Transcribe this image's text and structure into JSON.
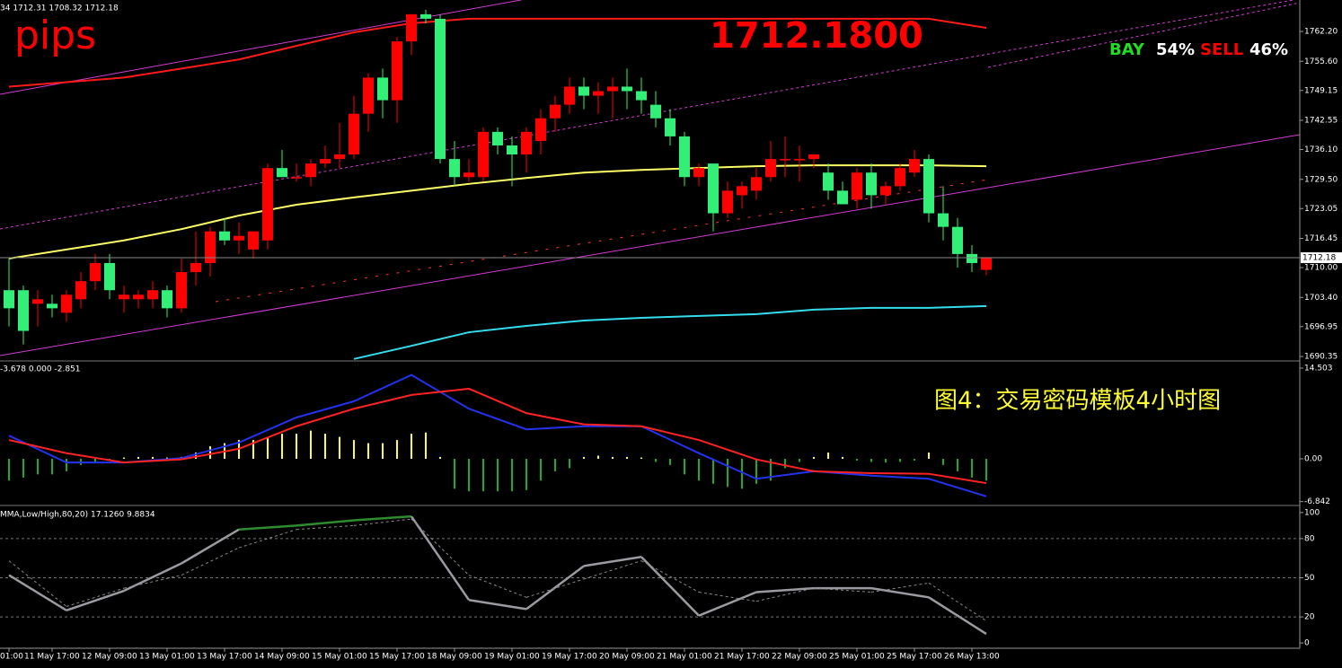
{
  "chart_data": [
    {
      "type": "candlestick",
      "header": "34 1712.31 1708.32 1712.18",
      "annotations": {
        "symbol": "pips",
        "price": "1712.1800",
        "buy_label": "BAY",
        "buy_pct": "54%",
        "sell_label": "SELL",
        "sell_pct": "46%",
        "caption": "图4：交易密码模板4小时图"
      },
      "up_color": "#ff0000",
      "down_color": "#33ee77",
      "categories": [
        "01:00",
        null,
        null,
        "11 May 17:00",
        null,
        null,
        null,
        "12 May 09:00",
        null,
        null,
        null,
        "13 May 01:00",
        null,
        null,
        null,
        "13 May 17:00",
        null,
        null,
        null,
        "14 May 09:00",
        null,
        null,
        null,
        "15 May 01:00",
        null,
        null,
        null,
        "15 May 17:00",
        null,
        null,
        null,
        "18 May 09:00",
        null,
        null,
        null,
        "19 May 01:00",
        null,
        null,
        null,
        "19 May 17:00",
        null,
        null,
        null,
        "20 May 09:00",
        null,
        null,
        null,
        "21 May 01:00",
        null,
        null,
        null,
        "21 May 17:00",
        null,
        null,
        null,
        "22 May 09:00",
        null,
        null,
        null,
        "25 May 01:00",
        null,
        null,
        null,
        "25 May 17:00",
        null,
        null,
        null,
        "26 May 13:00",
        null
      ],
      "open": [
        1705,
        1705,
        1702,
        1702,
        1700,
        1703,
        1707,
        1711,
        1703,
        1703,
        1703,
        1705,
        1701,
        1709,
        1711,
        1718,
        1716,
        1714,
        1716,
        1732,
        1730,
        1730,
        1733,
        1734,
        1735,
        1744,
        1752,
        1747,
        1760,
        1766,
        1765,
        1734,
        1730,
        1730,
        1740,
        1737,
        1735,
        1738,
        1743,
        1746,
        1750,
        1748,
        1749,
        1750,
        1749,
        1746,
        1743,
        1739,
        1730,
        1733,
        1722,
        1726,
        1727,
        1730,
        1734,
        1734,
        1734,
        1731,
        1727,
        1725,
        1731,
        1726,
        1728,
        1731,
        1734,
        1722,
        1719,
        1713,
        1709.5
      ],
      "high": [
        1712,
        1706,
        1705,
        1704,
        1705,
        1709,
        1713,
        1713,
        1706,
        1705,
        1707,
        1706,
        1712,
        1718,
        1719,
        1721,
        1720,
        1718,
        1733,
        1736,
        1733,
        1734,
        1737,
        1742,
        1748,
        1753,
        1754,
        1761,
        1766,
        1767,
        1766,
        1738,
        1734,
        1741,
        1741,
        1739,
        1741,
        1745,
        1748,
        1752,
        1752,
        1751,
        1752,
        1754,
        1752,
        1749,
        1745,
        1740,
        1733,
        1733,
        1729,
        1729,
        1732,
        1738,
        1739,
        1737,
        1735,
        1733,
        1729,
        1732,
        1733,
        1729,
        1733,
        1736,
        1735,
        1728,
        1721,
        1715,
        1712.31
      ],
      "low": [
        1697,
        1693,
        1697,
        1699,
        1698,
        1701,
        1705,
        1703,
        1700,
        1701,
        1701,
        1699,
        1700,
        1706,
        1708,
        1715,
        1713,
        1712,
        1714,
        1730,
        1729,
        1728,
        1732,
        1732,
        1734,
        1740,
        1743,
        1742,
        1757,
        1764,
        1733,
        1728,
        1729,
        1729,
        1735,
        1728,
        1731,
        1735,
        1740,
        1744,
        1745,
        1744,
        1743,
        1745,
        1744,
        1741,
        1737,
        1728,
        1728,
        1718,
        1721,
        1723,
        1725,
        1729,
        1730,
        1729,
        1732,
        1725,
        1724,
        1723,
        1723,
        1724,
        1727,
        1730,
        1720,
        1716,
        1710,
        1709,
        1708.32
      ],
      "close": [
        1701,
        1696,
        1703,
        1701,
        1704,
        1707,
        1711,
        1705,
        1704,
        1704,
        1705,
        1701,
        1709,
        1711,
        1718,
        1716,
        1717,
        1718,
        1732,
        1730,
        1730,
        1733,
        1734,
        1735,
        1744,
        1752,
        1747,
        1760,
        1766,
        1765,
        1734,
        1730,
        1731,
        1740,
        1737,
        1735,
        1740,
        1743,
        1746,
        1750,
        1748,
        1749,
        1750,
        1749,
        1747,
        1743,
        1739,
        1730,
        1732,
        1722,
        1727,
        1728,
        1730,
        1734,
        1734,
        1734,
        1735,
        1727,
        1724,
        1731,
        1726,
        1728,
        1732,
        1734,
        1722,
        1719,
        1713,
        1711,
        1712.18
      ],
      "ylim": [
        1689.56,
        1769.15
      ],
      "yticks": [
        {
          "value": 1762.2,
          "label": "1762.20"
        },
        {
          "value": 1755.6,
          "label": "1755.60"
        },
        1749.15,
        1742.55,
        {
          "value": 1736.1,
          "label": "1736.10"
        },
        {
          "value": 1729.5,
          "label": "1729.50"
        },
        1723.05,
        1716.45,
        {
          "value": 1710,
          "label": "1710.00"
        },
        {
          "value": 1703.4,
          "label": "1703.40"
        },
        1696.95,
        1690.35
      ],
      "line_x": [
        0,
        4,
        8,
        12,
        16,
        20,
        24,
        28,
        32,
        36,
        40,
        44,
        48,
        52,
        56,
        60,
        64,
        68
      ],
      "lines": [
        {
          "color": "#ff1a1a",
          "values": [
            1750,
            1751,
            1752,
            1754,
            1756,
            1759,
            1762,
            1764,
            1765,
            1765,
            1765,
            1765,
            1765,
            1765,
            1765,
            1765,
            1765,
            1763
          ]
        },
        {
          "color": "#ffff66",
          "values": [
            1712,
            1714,
            1716,
            1718.5,
            1721.5,
            1723.9,
            1725.5,
            1727,
            1728.5,
            1729.8,
            1731,
            1731.6,
            1732,
            1732.4,
            1732.6,
            1732.6,
            1732.6,
            1732.4
          ]
        },
        {
          "color": "#33ddee",
          "values": [
            null,
            null,
            null,
            null,
            null,
            null,
            1689.8,
            1692.7,
            1695.7,
            1697.1,
            1698.3,
            1698.9,
            1699.3,
            1699.7,
            1700.7,
            1701.1,
            1701.1,
            1701.5
          ]
        }
      ]
    },
    {
      "type": "macd",
      "header": "-3.678 0.000 -2.851",
      "pos_color": "#ffff33",
      "neg_color": "#22aa22",
      "values": [
        -3.5,
        -3,
        -2.5,
        -2.5,
        -2,
        -1,
        -0.5,
        -0.3,
        0.2,
        0.3,
        0.3,
        0.2,
        0.3,
        1,
        2,
        2.5,
        3,
        3,
        3.5,
        4,
        4,
        4.5,
        4,
        3.5,
        3,
        2.5,
        2.5,
        3,
        4,
        4.2,
        0.3,
        -4.8,
        -5.2,
        -5.2,
        -5.2,
        -5.2,
        -5,
        -3.5,
        -2,
        -1.5,
        0.3,
        0.5,
        0.3,
        0.3,
        0.2,
        -0.5,
        -1,
        -2.5,
        -3.5,
        -4,
        -4.5,
        -4.8,
        -4,
        -3.5,
        -1.5,
        -0.5,
        0.3,
        1,
        0.3,
        -0.3,
        -0.5,
        -0.6,
        -0.5,
        -0.3,
        1,
        -1,
        -2,
        -3,
        -3.5
      ],
      "ylim": [
        -7.18,
        15.5
      ],
      "yticks": [
        14.503,
        {
          "value": 0,
          "label": "0.00"
        },
        -6.842
      ],
      "line_x": [
        0,
        4,
        8,
        12,
        16,
        20,
        24,
        28,
        32,
        36,
        40,
        44,
        48,
        52,
        56,
        60,
        64,
        68
      ],
      "lines": [
        {
          "color": "#2233ee",
          "values": [
            3.7,
            -0.6,
            -0.6,
            0.1,
            2.6,
            6.6,
            9.2,
            13.4,
            8.0,
            4.7,
            5.2,
            5.2,
            0.9,
            -3.2,
            -2.0,
            -2.7,
            -3.2,
            -6.0
          ]
        },
        {
          "color": "#ff2222",
          "values": [
            3.0,
            0.9,
            -0.6,
            -0.1,
            1.6,
            5.2,
            8.0,
            10.2,
            11.2,
            7.3,
            5.5,
            5.2,
            3.0,
            -0.1,
            -2.0,
            -2.3,
            -2.4,
            -3.9
          ]
        }
      ]
    },
    {
      "type": "line",
      "header": "MMA,Low/High,80,20) 17.1260 9.8834",
      "overbought": 80,
      "oversold": 20,
      "ylim": [
        -4,
        104
      ],
      "yticks": [
        100,
        80,
        50,
        20,
        0
      ],
      "x": [
        0,
        4,
        8,
        12,
        16,
        20,
        24,
        28,
        32,
        36,
        40,
        44,
        48,
        52,
        56,
        60,
        64,
        68
      ],
      "series": [
        {
          "color": "#9a9aa0",
          "high_color": "#2e8b2e",
          "low_color": "#ff1a1a",
          "values": [
            52,
            25,
            40,
            61,
            87,
            90,
            94,
            97,
            33,
            26,
            59,
            66,
            21,
            39,
            42,
            42,
            35,
            7
          ]
        },
        {
          "color": "#8a8a8a",
          "dash": true,
          "values": [
            63,
            28,
            42,
            52,
            73,
            87,
            90,
            95,
            52,
            35,
            49,
            63,
            39,
            32,
            42,
            39,
            46,
            17
          ]
        }
      ]
    }
  ]
}
